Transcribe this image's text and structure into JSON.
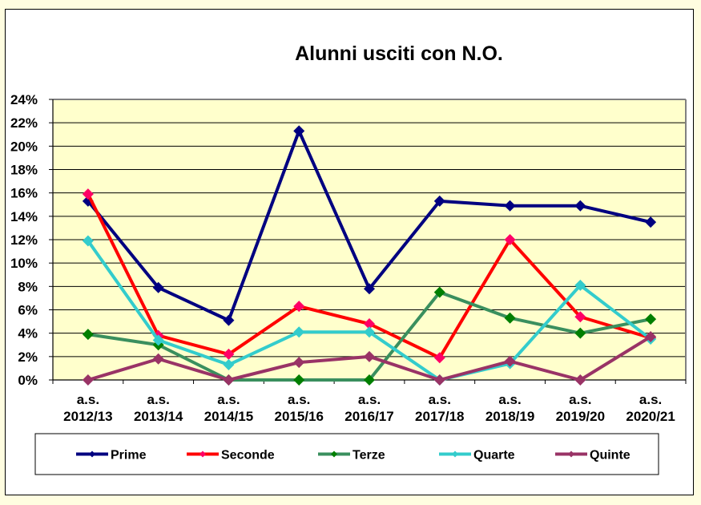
{
  "chart_data": {
    "type": "line",
    "title": "Alunni usciti con N.O.",
    "xlabel": "",
    "ylabel": "",
    "ylim": [
      0,
      24
    ],
    "y_ticks": [
      "0%",
      "2%",
      "4%",
      "6%",
      "8%",
      "10%",
      "12%",
      "14%",
      "16%",
      "18%",
      "20%",
      "22%",
      "24%"
    ],
    "y_format": "percent",
    "grid": true,
    "legend_position": "bottom",
    "plot_background": "#FFFFCC",
    "categories": [
      [
        "a.s.",
        "2012/13"
      ],
      [
        "a.s.",
        "2013/14"
      ],
      [
        "a.s.",
        "2014/15"
      ],
      [
        "a.s.",
        "2015/16"
      ],
      [
        "a.s.",
        "2016/17"
      ],
      [
        "a.s.",
        "2017/18"
      ],
      [
        "a.s.",
        "2018/19"
      ],
      [
        "a.s.",
        "2019/20"
      ],
      [
        "a.s.",
        "2020/21"
      ]
    ],
    "series": [
      {
        "name": "Prime",
        "color": "#000080",
        "marker_color": "#000080",
        "values": [
          15.3,
          7.9,
          5.1,
          21.3,
          7.8,
          15.3,
          14.9,
          14.9,
          13.5
        ]
      },
      {
        "name": "Seconde",
        "color": "#FF0000",
        "marker_color": "#FF0066",
        "values": [
          15.9,
          3.8,
          2.2,
          6.3,
          4.8,
          1.9,
          12.0,
          5.4,
          3.6
        ]
      },
      {
        "name": "Terze",
        "color": "#3A8F5E",
        "marker_color": "#007F00",
        "values": [
          3.9,
          3.0,
          0.0,
          0.0,
          0.0,
          7.5,
          5.3,
          4.0,
          5.2
        ]
      },
      {
        "name": "Quarte",
        "color": "#33CCCC",
        "marker_color": "#33CCCC",
        "values": [
          11.9,
          3.4,
          1.3,
          4.1,
          4.1,
          0.0,
          1.4,
          8.1,
          3.5
        ]
      },
      {
        "name": "Quinte",
        "color": "#993366",
        "marker_color": "#993366",
        "values": [
          0.0,
          1.8,
          0.0,
          1.5,
          2.0,
          0.0,
          1.6,
          0.0,
          3.7
        ]
      }
    ]
  }
}
